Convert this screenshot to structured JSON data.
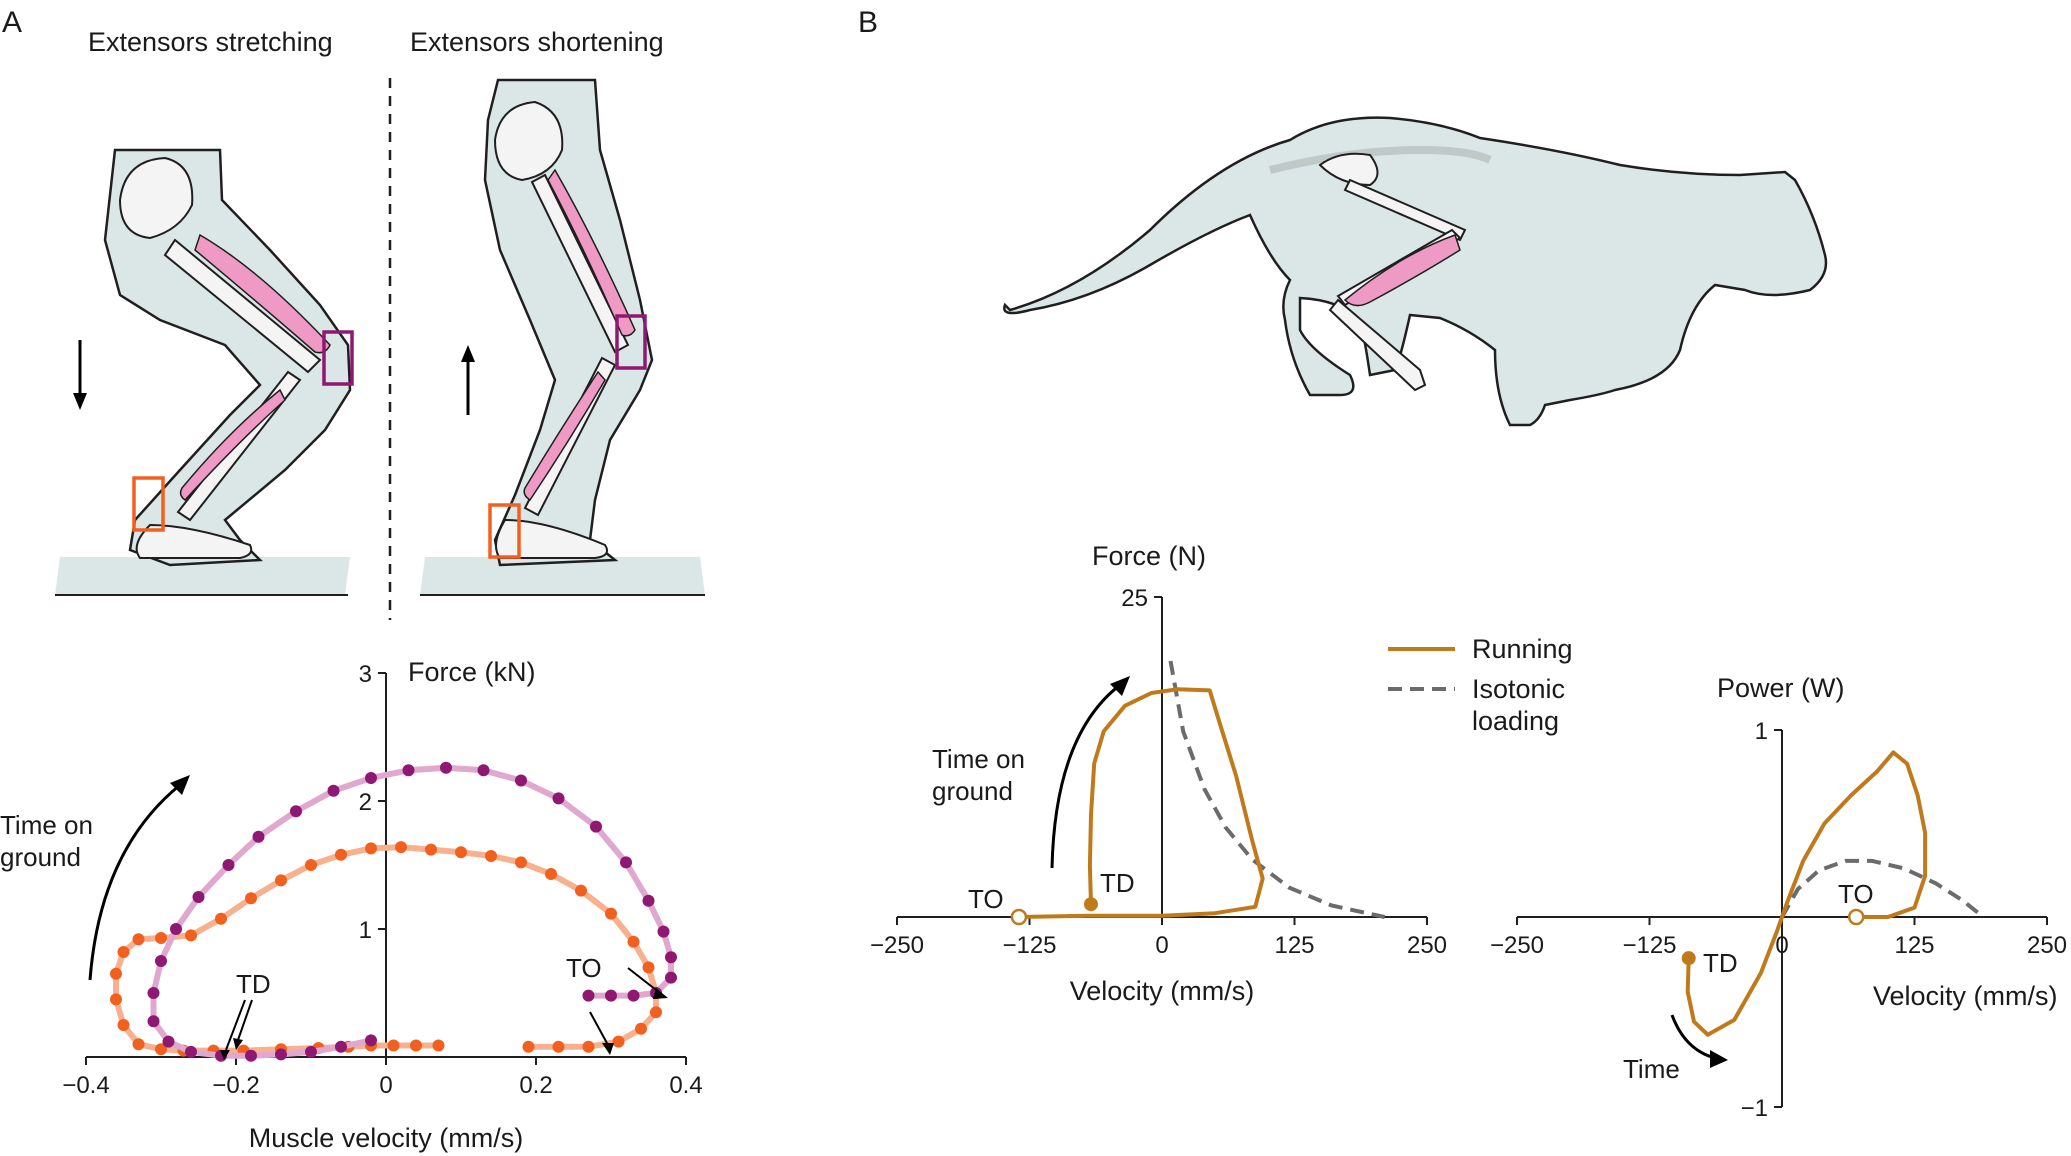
{
  "panel_a": {
    "letter": "A",
    "left_caption": "Extensors stretching",
    "right_caption": "Extensors shortening"
  },
  "panel_b": {
    "letter": "B"
  },
  "colors": {
    "skin": "#dbe7e6",
    "outline": "#1f1f1f",
    "bone": "#f4f4f4",
    "muscle": "#ee9ac4",
    "orange": "#f2601f",
    "orange_light": "#f8b08f",
    "purple": "#8e1872",
    "purple_light": "#e0a7cf",
    "running": "#c07a1c",
    "isotonic": "#6b6b6b"
  },
  "chart_data": [
    {
      "id": "muscle-force-velocity",
      "type": "scatter",
      "xlabel": "Muscle velocity (mm/s)",
      "ylabel": "Force (kN)",
      "xlim": [
        -0.4,
        0.4
      ],
      "ylim": [
        0,
        3
      ],
      "xticks": [
        "−0.4",
        "−0.2",
        "0",
        "0.2",
        "0.4"
      ],
      "yticks": [
        "1",
        "2",
        "3"
      ],
      "annotations": {
        "time_on_ground_1": "Time on",
        "time_on_ground_2": "ground",
        "td": "TD",
        "to": "TO"
      },
      "series": [
        {
          "color": "orange",
          "points": [
            [
              0.07,
              0.09
            ],
            [
              0.04,
              0.09
            ],
            [
              0.01,
              0.09
            ],
            [
              -0.02,
              0.09
            ],
            [
              -0.05,
              0.08
            ],
            [
              -0.09,
              0.07
            ],
            [
              -0.14,
              0.06
            ],
            [
              -0.19,
              0.05
            ],
            [
              -0.23,
              0.05
            ],
            [
              -0.27,
              0.05
            ],
            [
              -0.3,
              0.06
            ],
            [
              -0.33,
              0.1
            ],
            [
              -0.35,
              0.25
            ],
            [
              -0.36,
              0.45
            ],
            [
              -0.36,
              0.65
            ],
            [
              -0.35,
              0.82
            ],
            [
              -0.33,
              0.92
            ],
            [
              -0.3,
              0.93
            ],
            [
              -0.26,
              0.95
            ],
            [
              -0.22,
              1.08
            ],
            [
              -0.18,
              1.24
            ],
            [
              -0.14,
              1.38
            ],
            [
              -0.1,
              1.5
            ],
            [
              -0.06,
              1.58
            ],
            [
              -0.02,
              1.63
            ],
            [
              0.02,
              1.64
            ],
            [
              0.06,
              1.62
            ],
            [
              0.1,
              1.6
            ],
            [
              0.14,
              1.57
            ],
            [
              0.18,
              1.52
            ],
            [
              0.22,
              1.43
            ],
            [
              0.26,
              1.3
            ],
            [
              0.3,
              1.12
            ],
            [
              0.33,
              0.9
            ],
            [
              0.35,
              0.7
            ],
            [
              0.36,
              0.5
            ],
            [
              0.36,
              0.35
            ],
            [
              0.34,
              0.22
            ],
            [
              0.31,
              0.12
            ],
            [
              0.27,
              0.08
            ],
            [
              0.23,
              0.08
            ],
            [
              0.19,
              0.08
            ]
          ]
        },
        {
          "color": "purple",
          "points": [
            [
              -0.02,
              0.13
            ],
            [
              -0.06,
              0.08
            ],
            [
              -0.1,
              0.04
            ],
            [
              -0.14,
              0.02
            ],
            [
              -0.18,
              0.01
            ],
            [
              -0.22,
              0.01
            ],
            [
              -0.26,
              0.04
            ],
            [
              -0.29,
              0.12
            ],
            [
              -0.31,
              0.28
            ],
            [
              -0.31,
              0.5
            ],
            [
              -0.3,
              0.75
            ],
            [
              -0.28,
              1.0
            ],
            [
              -0.25,
              1.25
            ],
            [
              -0.21,
              1.5
            ],
            [
              -0.17,
              1.72
            ],
            [
              -0.12,
              1.92
            ],
            [
              -0.07,
              2.08
            ],
            [
              -0.02,
              2.18
            ],
            [
              0.03,
              2.24
            ],
            [
              0.08,
              2.26
            ],
            [
              0.13,
              2.24
            ],
            [
              0.18,
              2.16
            ],
            [
              0.23,
              2.02
            ],
            [
              0.28,
              1.8
            ],
            [
              0.32,
              1.52
            ],
            [
              0.35,
              1.22
            ],
            [
              0.37,
              0.98
            ],
            [
              0.38,
              0.78
            ],
            [
              0.38,
              0.62
            ],
            [
              0.36,
              0.5
            ],
            [
              0.33,
              0.48
            ],
            [
              0.3,
              0.48
            ],
            [
              0.27,
              0.48
            ]
          ]
        }
      ]
    },
    {
      "id": "cat-force-velocity",
      "type": "line",
      "xlabel": "Velocity (mm/s)",
      "ylabel": "Force (N)",
      "xlim": [
        -250,
        250
      ],
      "ylim": [
        0,
        25
      ],
      "xticks": [
        "−250",
        "−125",
        "0",
        "125",
        "250"
      ],
      "yticks": [
        "25"
      ],
      "annotations": {
        "time_on_ground_1": "Time on",
        "time_on_ground_2": "ground",
        "td": "TD",
        "to": "TO"
      },
      "series": [
        {
          "name": "Running",
          "points": [
            [
              -67,
              1
            ],
            [
              -68,
              4
            ],
            [
              -67,
              8
            ],
            [
              -64,
              12
            ],
            [
              -55,
              14.5
            ],
            [
              -35,
              16.5
            ],
            [
              -10,
              17.5
            ],
            [
              15,
              17.8
            ],
            [
              45,
              17.7
            ],
            [
              55,
              15
            ],
            [
              70,
              11
            ],
            [
              85,
              6
            ],
            [
              95,
              3
            ],
            [
              88,
              0.8
            ],
            [
              50,
              0.3
            ],
            [
              0,
              0.1
            ],
            [
              -70,
              0.1
            ],
            [
              -135,
              0
            ]
          ]
        },
        {
          "name": "Isotonic loading",
          "points": [
            [
              8,
              20
            ],
            [
              20,
              14.5
            ],
            [
              40,
              10
            ],
            [
              60,
              7
            ],
            [
              85,
              4.5
            ],
            [
              120,
              2.3
            ],
            [
              160,
              0.9
            ],
            [
              210,
              0
            ]
          ]
        }
      ],
      "legend": [
        "Running",
        "Isotonic loading"
      ]
    },
    {
      "id": "cat-power-velocity",
      "type": "line",
      "xlabel": "Velocity (mm/s)",
      "ylabel": "Power (W)",
      "xlim": [
        -250,
        250
      ],
      "ylim": [
        -1,
        1
      ],
      "xticks": [
        "−250",
        "−125",
        "0",
        "125",
        "250"
      ],
      "yticks": [
        "1",
        "−1"
      ],
      "annotations": {
        "td": "TD",
        "to": "TO",
        "time": "Time"
      },
      "series": [
        {
          "name": "Running",
          "points": [
            [
              -88,
              -0.22
            ],
            [
              -89,
              -0.4
            ],
            [
              -83,
              -0.56
            ],
            [
              -70,
              -0.63
            ],
            [
              -45,
              -0.55
            ],
            [
              -20,
              -0.3
            ],
            [
              -5,
              -0.08
            ],
            [
              5,
              0.08
            ],
            [
              20,
              0.3
            ],
            [
              40,
              0.5
            ],
            [
              65,
              0.65
            ],
            [
              90,
              0.78
            ],
            [
              105,
              0.88
            ],
            [
              118,
              0.82
            ],
            [
              128,
              0.65
            ],
            [
              135,
              0.45
            ],
            [
              135,
              0.22
            ],
            [
              125,
              0.05
            ],
            [
              100,
              0.0
            ],
            [
              70,
              0.0
            ]
          ]
        },
        {
          "name": "Isotonic loading",
          "points": [
            [
              0,
              0
            ],
            [
              15,
              0.15
            ],
            [
              35,
              0.25
            ],
            [
              60,
              0.3
            ],
            [
              85,
              0.3
            ],
            [
              115,
              0.26
            ],
            [
              145,
              0.18
            ],
            [
              170,
              0.09
            ],
            [
              190,
              0
            ]
          ]
        }
      ]
    }
  ]
}
